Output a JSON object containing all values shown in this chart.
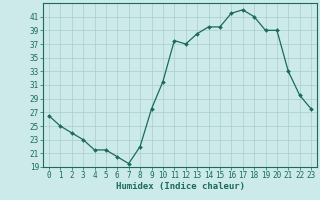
{
  "x": [
    0,
    1,
    2,
    3,
    4,
    5,
    6,
    7,
    8,
    9,
    10,
    11,
    12,
    13,
    14,
    15,
    16,
    17,
    18,
    19,
    20,
    21,
    22,
    23
  ],
  "y": [
    26.5,
    25.0,
    24.0,
    23.0,
    21.5,
    21.5,
    20.5,
    19.5,
    22.0,
    27.5,
    31.5,
    37.5,
    37.0,
    38.5,
    39.5,
    39.5,
    41.5,
    42.0,
    41.0,
    39.0,
    39.0,
    33.0,
    29.5,
    27.5
  ],
  "line_color": "#1a6b5a",
  "marker": "D",
  "marker_size": 2.0,
  "bg_color": "#cceaea",
  "grid_color": "#aacccc",
  "tick_color": "#1a6b5a",
  "xlabel": "Humidex (Indice chaleur)",
  "ylim": [
    19,
    43
  ],
  "xlim": [
    -0.5,
    23.5
  ],
  "yticks": [
    19,
    21,
    23,
    25,
    27,
    29,
    31,
    33,
    35,
    37,
    39,
    41
  ],
  "xticks": [
    0,
    1,
    2,
    3,
    4,
    5,
    6,
    7,
    8,
    9,
    10,
    11,
    12,
    13,
    14,
    15,
    16,
    17,
    18,
    19,
    20,
    21,
    22,
    23
  ],
  "font_color": "#1a6b5a",
  "tick_fontsize": 5.5,
  "xlabel_fontsize": 6.5,
  "linewidth": 0.9
}
